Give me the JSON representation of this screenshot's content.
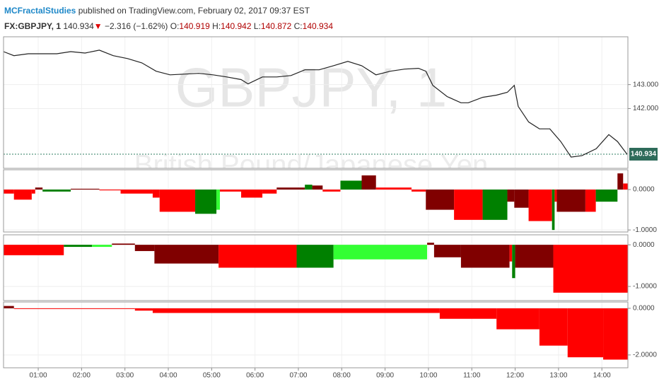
{
  "header": {
    "author": "MCFractalStudies",
    "published": "published on TradingView.com, February 02, 2017 09:37 EST",
    "symbol": "FX:GBPJPY, 1",
    "last": "140.934",
    "arrow": "▼",
    "change": "−2.316 (−1.62%)",
    "ohlc": [
      {
        "label": "O:",
        "value": "140.919"
      },
      {
        "label": "H:",
        "value": "140.942"
      },
      {
        "label": "L:",
        "value": "140.872"
      },
      {
        "label": "C:",
        "value": "140.934"
      }
    ]
  },
  "watermark": {
    "title": "GBPJPY, 1",
    "subtitle": "British Pound/Japanese Yen"
  },
  "price_label": "140.934",
  "chart_data": [
    {
      "type": "line",
      "color": "#222222",
      "x": [
        0.2,
        0.44,
        0.77,
        1.1,
        1.43,
        1.75,
        2.08,
        2.41,
        2.73,
        3.06,
        3.39,
        3.72,
        4.04,
        4.37,
        4.7,
        5.03,
        5.35,
        5.68,
        5.84,
        6.17,
        6.5,
        6.83,
        7.15,
        7.48,
        7.81,
        8.14,
        8.46,
        8.79,
        9.12,
        9.45,
        9.77,
        9.94,
        10.1,
        10.43,
        10.75,
        10.92,
        11.25,
        11.57,
        11.82,
        11.98,
        12.07,
        12.31,
        12.56,
        12.8,
        13.05,
        13.29,
        13.54,
        13.87,
        14.16,
        14.36,
        14.58
      ],
      "values": [
        144.38,
        144.21,
        144.29,
        144.29,
        144.29,
        144.38,
        144.32,
        144.44,
        144.21,
        144.09,
        143.91,
        143.56,
        143.41,
        143.44,
        143.47,
        143.41,
        143.32,
        143.21,
        143.03,
        143.32,
        143.32,
        143.38,
        143.62,
        143.62,
        143.79,
        143.97,
        143.79,
        143.41,
        143.56,
        143.65,
        143.68,
        143.56,
        142.97,
        142.5,
        142.24,
        142.24,
        142.47,
        142.56,
        142.68,
        142.97,
        142.09,
        141.44,
        141.15,
        141.15,
        140.62,
        139.97,
        140.03,
        140.32,
        140.91,
        140.62,
        140.09
      ],
      "xlim": [
        0.2,
        14.6
      ],
      "xticks": [
        {
          "value": 1,
          "label": "01:00"
        },
        {
          "value": 2,
          "label": "02:00"
        },
        {
          "value": 3,
          "label": "03:00"
        },
        {
          "value": 4,
          "label": "04:00"
        },
        {
          "value": 5,
          "label": "05:00"
        },
        {
          "value": 6,
          "label": "06:00"
        },
        {
          "value": 7,
          "label": "07:00"
        },
        {
          "value": 8,
          "label": "08:00"
        },
        {
          "value": 9,
          "label": "09:00"
        },
        {
          "value": 10,
          "label": "10:00"
        },
        {
          "value": 11,
          "label": "11:00"
        },
        {
          "value": 12,
          "label": "12:00"
        },
        {
          "value": 13,
          "label": "13:00"
        },
        {
          "value": 14,
          "label": "14:00"
        }
      ],
      "ylim": [
        139.5,
        145
      ],
      "yticks": [
        {
          "value": 143,
          "label": "143.000"
        },
        {
          "value": 142,
          "label": "142.000"
        }
      ]
    },
    {
      "type": "histogram",
      "bins": [
        0.2,
        0.44,
        0.85,
        0.93,
        1.1,
        1.75,
        2.41,
        2.9,
        3.64,
        3.8,
        4.62,
        5.11,
        5.19,
        5.68,
        6.17,
        6.5,
        7.15,
        7.32,
        7.56,
        7.97,
        8.46,
        8.79,
        9.61,
        9.94,
        10.59,
        11.25,
        11.82,
        11.98,
        12.31,
        12.85,
        12.91,
        12.96,
        13.62,
        13.86,
        14.36,
        14.49,
        14.6
      ],
      "values": [
        -0.1,
        -0.25,
        -0.1,
        0.05,
        -0.05,
        0.02,
        -0.02,
        -0.1,
        -0.2,
        -0.55,
        -0.6,
        -0.5,
        -0.05,
        -0.2,
        -0.1,
        0.05,
        0.12,
        0.1,
        -0.05,
        0.22,
        0.35,
        0.05,
        -0.05,
        -0.5,
        -0.75,
        -0.75,
        -0.3,
        -0.45,
        -0.78,
        -1.0,
        -0.3,
        -0.55,
        -0.55,
        -0.3,
        0.4,
        0.15
      ],
      "colors": [
        "#ff0000",
        "#ff0000",
        "#ff0000",
        "#800000",
        "#008000",
        "#800000",
        "#ff0000",
        "#ff0000",
        "#ff0000",
        "#ff0000",
        "#008000",
        "#33ff33",
        "#ff0000",
        "#ff0000",
        "#ff0000",
        "#800000",
        "#008000",
        "#800000",
        "#ff0000",
        "#008000",
        "#800000",
        "#ff0000",
        "#ff0000",
        "#800000",
        "#ff0000",
        "#008000",
        "#800000",
        "#800000",
        "#ff0000",
        "#008000",
        "#ff0000",
        "#800000",
        "#ff0000",
        "#008000",
        "#800000",
        "#ff0000"
      ],
      "ylim": [
        -1.05,
        0.49
      ],
      "yticks": [
        {
          "value": 0,
          "label": "0.0000"
        },
        {
          "value": -1,
          "label": "-1.0000"
        }
      ]
    },
    {
      "type": "histogram",
      "bins": [
        0.2,
        1.59,
        2.24,
        2.7,
        3.23,
        3.68,
        5.16,
        6.96,
        7.81,
        9.97,
        10.13,
        10.75,
        11.87,
        11.93,
        12.0,
        12.88,
        14.6
      ],
      "values": [
        -0.25,
        -0.05,
        -0.05,
        0.03,
        -0.15,
        -0.45,
        -0.55,
        -0.55,
        -0.35,
        0.05,
        -0.3,
        -0.55,
        -0.4,
        -0.8,
        -0.55,
        -1.15
      ],
      "colors": [
        "#ff0000",
        "#008000",
        "#33ff33",
        "#800000",
        "#800000",
        "#800000",
        "#ff0000",
        "#008000",
        "#33ff33",
        "#800000",
        "#800000",
        "#800000",
        "#ff0000",
        "#008000",
        "#800000",
        "#ff0000"
      ],
      "ylim": [
        -1.34,
        0.24
      ],
      "yticks": [
        {
          "value": 0,
          "label": "0.0000"
        },
        {
          "value": -1,
          "label": "-1.0000"
        }
      ]
    },
    {
      "type": "histogram",
      "bins": [
        0.2,
        0.44,
        3.23,
        3.64,
        10.26,
        11.57,
        12.56,
        13.21,
        14.03,
        14.6
      ],
      "values": [
        0.1,
        -0.03,
        -0.1,
        -0.2,
        -0.45,
        -0.9,
        -1.6,
        -2.1,
        -2.2
      ],
      "colors": [
        "#800000",
        "#ff0000",
        "#ff0000",
        "#ff0000",
        "#ff0000",
        "#ff0000",
        "#ff0000",
        "#ff0000",
        "#ff0000"
      ],
      "ylim": [
        -2.55,
        0.27
      ],
      "yticks": [
        {
          "value": 0,
          "label": "0.0000"
        },
        {
          "value": -2,
          "label": "-2.0000"
        }
      ]
    }
  ]
}
